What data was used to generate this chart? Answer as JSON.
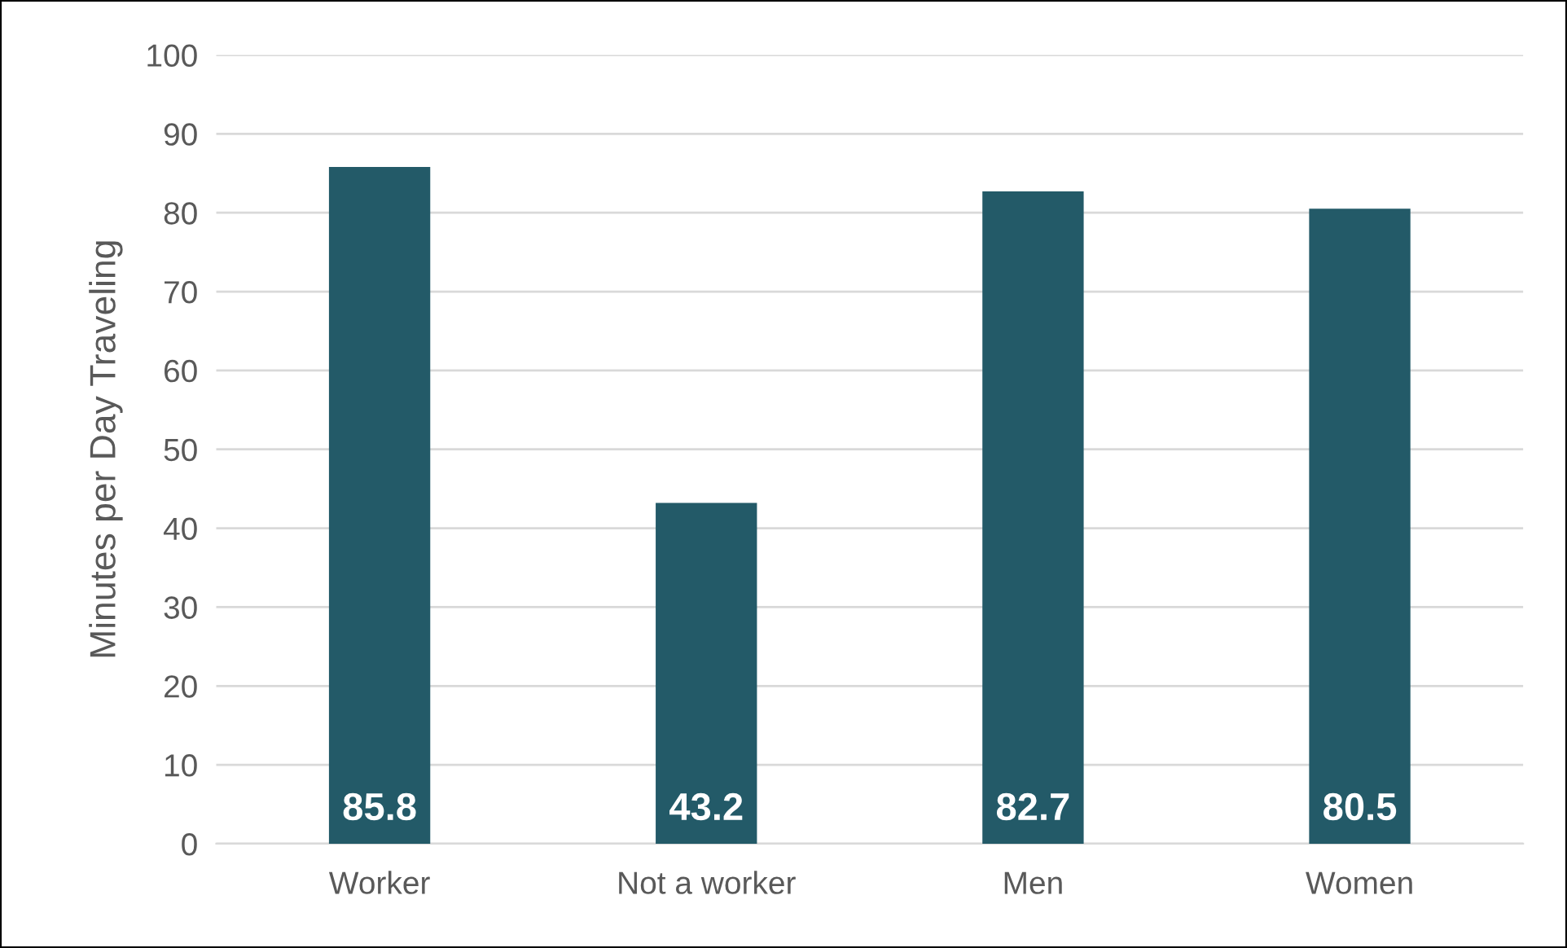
{
  "chart_data": {
    "type": "bar",
    "ylabel": "Minutes per Day Traveling",
    "categories": [
      "Worker",
      "Not a worker",
      "Men",
      "Women"
    ],
    "values": [
      85.8,
      43.2,
      82.7,
      80.5
    ],
    "color": "#235a68",
    "ylim": [
      0,
      100
    ],
    "yticks": [
      0,
      10,
      20,
      30,
      40,
      50,
      60,
      70,
      80,
      90,
      100
    ],
    "grid": "y",
    "data_labels": true
  }
}
